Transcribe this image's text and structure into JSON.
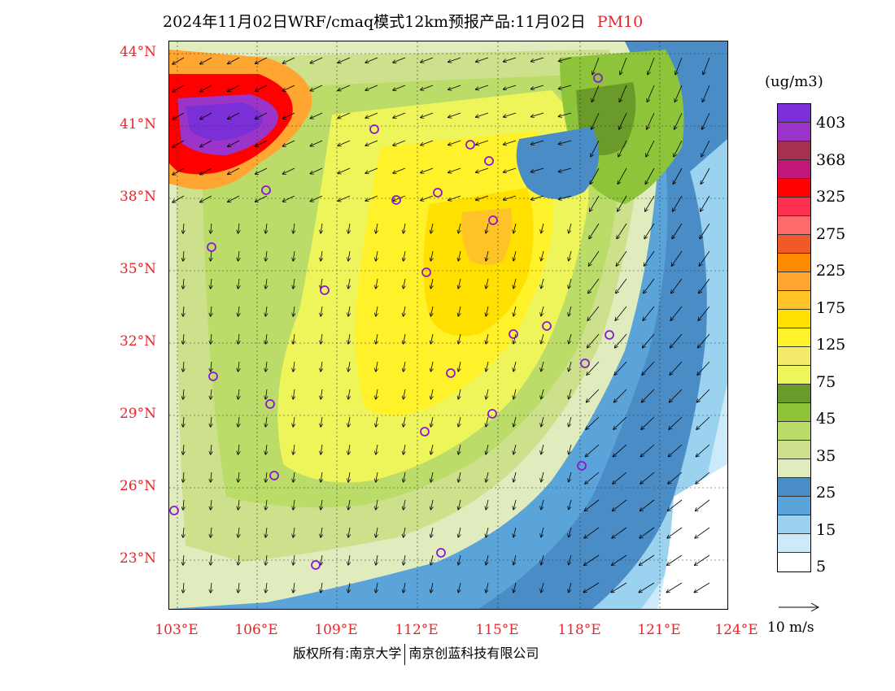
{
  "title": {
    "main": "2024年11月02日WRF/cmaq模式12km预报产品:11月02日",
    "species": "PM10"
  },
  "map": {
    "lat_labels": [
      "44°N",
      "41°N",
      "38°N",
      "35°N",
      "32°N",
      "29°N",
      "26°N",
      "23°N"
    ],
    "lon_labels": [
      "103°E",
      "106°E",
      "109°E",
      "112°E",
      "115°E",
      "118°E",
      "121°E",
      "124°E"
    ],
    "label_color": "#e8262a"
  },
  "legend": {
    "units": "(ug/m3)",
    "colors": [
      "#7b2fd6",
      "#9b34c9",
      "#a8304f",
      "#c2177a",
      "#ff0000",
      "#ff2f50",
      "#ff6a6a",
      "#f05a28",
      "#ff8a00",
      "#ffa531",
      "#ffc328",
      "#ffe000",
      "#fff22a",
      "#f4ea6a",
      "#eef55a",
      "#6a9b2a",
      "#8ec43a",
      "#bcdc6a",
      "#cde08c",
      "#e0ecbe",
      "#4a8cc6",
      "#5aa4da",
      "#9ad2ef",
      "#cdeafa",
      "#ffffff"
    ],
    "labels": [
      "403",
      "368",
      "325",
      "275",
      "225",
      "175",
      "125",
      "75",
      "45",
      "35",
      "25",
      "15",
      "5"
    ]
  },
  "vector_reference": {
    "label": "10 m/s"
  },
  "footer": {
    "copyright_left": "版权所有:南京大学",
    "copyright_right": "南京创蓝科技有限公司"
  }
}
